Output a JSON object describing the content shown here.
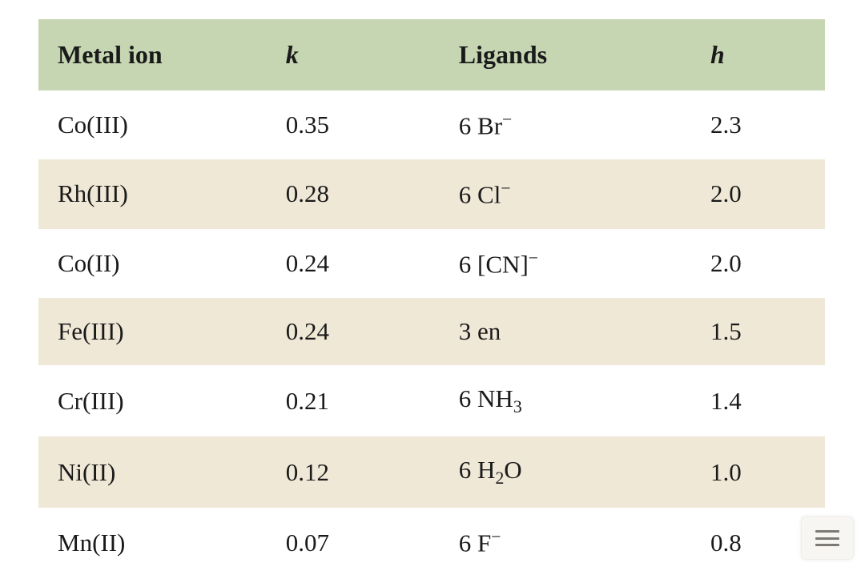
{
  "colors": {
    "header_bg": "#c6d6b2",
    "stripe_bg": "#f0e8d7",
    "text": "#1a1a1a",
    "page_bg": "#ffffff",
    "rule": "#1a1a1a",
    "menu_bg": "#f8f6f3",
    "menu_bar": "#7d7a76"
  },
  "table": {
    "type": "table",
    "font_family": "Times New Roman",
    "header_fontsize_pt": 24,
    "body_fontsize_pt": 23,
    "columns": [
      {
        "key": "metal_ion",
        "label": "Metal ion",
        "italic": false,
        "width_pct": 29
      },
      {
        "key": "k",
        "label": "k",
        "italic": true,
        "width_pct": 22
      },
      {
        "key": "ligands",
        "label": "Ligands",
        "italic": false,
        "width_pct": 32
      },
      {
        "key": "h",
        "label": "h",
        "italic": true,
        "width_pct": 17
      }
    ],
    "rows": [
      {
        "metal_ion": "Co(III)",
        "k": "0.35",
        "ligand_count": "6",
        "ligand_formula": "Br",
        "ligand_superscript": "−",
        "ligand_bracket": false,
        "h": "2.3"
      },
      {
        "metal_ion": "Rh(III)",
        "k": "0.28",
        "ligand_count": "6",
        "ligand_formula": "Cl",
        "ligand_superscript": "−",
        "ligand_bracket": false,
        "h": "2.0"
      },
      {
        "metal_ion": "Co(II)",
        "k": "0.24",
        "ligand_count": "6",
        "ligand_formula": "CN",
        "ligand_superscript": "−",
        "ligand_bracket": true,
        "h": "2.0"
      },
      {
        "metal_ion": "Fe(III)",
        "k": "0.24",
        "ligand_count": "3",
        "ligand_formula": "en",
        "ligand_superscript": "",
        "ligand_bracket": false,
        "h": "1.5"
      },
      {
        "metal_ion": "Cr(III)",
        "k": "0.21",
        "ligand_count": "6",
        "ligand_formula": "NH",
        "ligand_subscript": "3",
        "ligand_superscript": "",
        "ligand_bracket": false,
        "h": "1.4"
      },
      {
        "metal_ion": "Ni(II)",
        "k": "0.12",
        "ligand_count": "6",
        "ligand_formula": "H",
        "ligand_subscript": "2",
        "ligand_tail": "O",
        "ligand_superscript": "",
        "ligand_bracket": false,
        "h": "1.0"
      },
      {
        "metal_ion": "Mn(II)",
        "k": "0.07",
        "ligand_count": "6",
        "ligand_formula": "F",
        "ligand_superscript": "−",
        "ligand_bracket": false,
        "h": "0.8"
      }
    ]
  }
}
